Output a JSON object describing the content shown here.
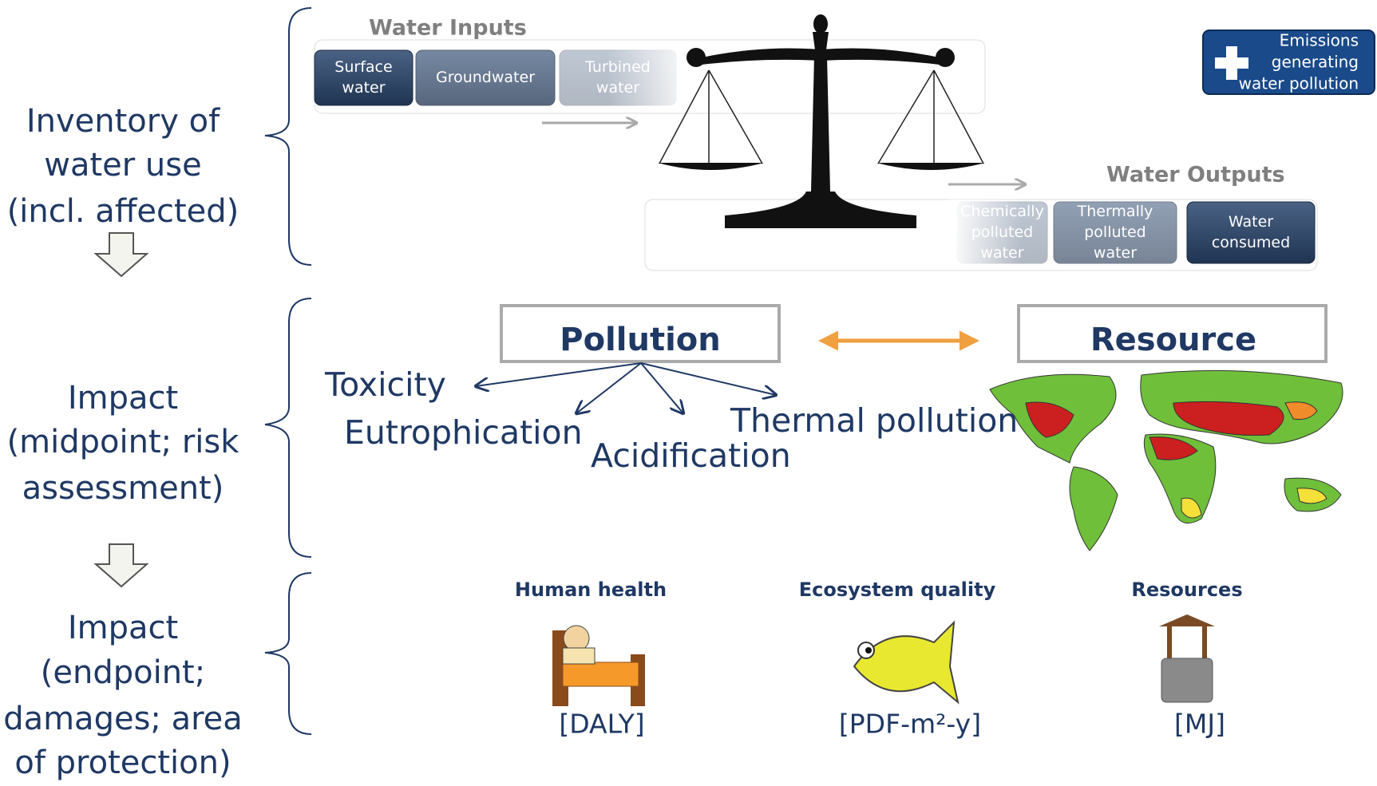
{
  "stages": [
    {
      "lines": [
        "Inventory of",
        "water use",
        "(incl. affected)"
      ]
    },
    {
      "lines": [
        "Impact",
        "(midpoint; risk",
        "assessment)"
      ]
    },
    {
      "lines": [
        "Impact",
        "(endpoint;",
        "damages; area",
        "of protection)"
      ]
    }
  ],
  "inputs": {
    "title": "Water Inputs",
    "items": [
      [
        "Surface",
        "water"
      ],
      [
        "Groundwater"
      ],
      [
        "Turbined",
        "water"
      ]
    ]
  },
  "outputs": {
    "title": "Water Outputs",
    "items": [
      [
        "Chemically",
        "polluted",
        "water"
      ],
      [
        "Thermally",
        "polluted",
        "water"
      ],
      [
        "Water",
        "consumed"
      ]
    ]
  },
  "emissions": [
    "Emissions",
    "generating",
    "water pollution"
  ],
  "midpoint": {
    "pollution": "Pollution",
    "resource": "Resource",
    "effects": [
      "Toxicity",
      "Eutrophication",
      "Acidification",
      "Thermal pollution"
    ]
  },
  "endpoints": [
    {
      "title": "Human health",
      "unit": "[DALY]"
    },
    {
      "title": "Ecosystem quality",
      "unit": "[PDF-m²-y]"
    },
    {
      "title": "Resources",
      "unit": "[MJ]"
    }
  ]
}
